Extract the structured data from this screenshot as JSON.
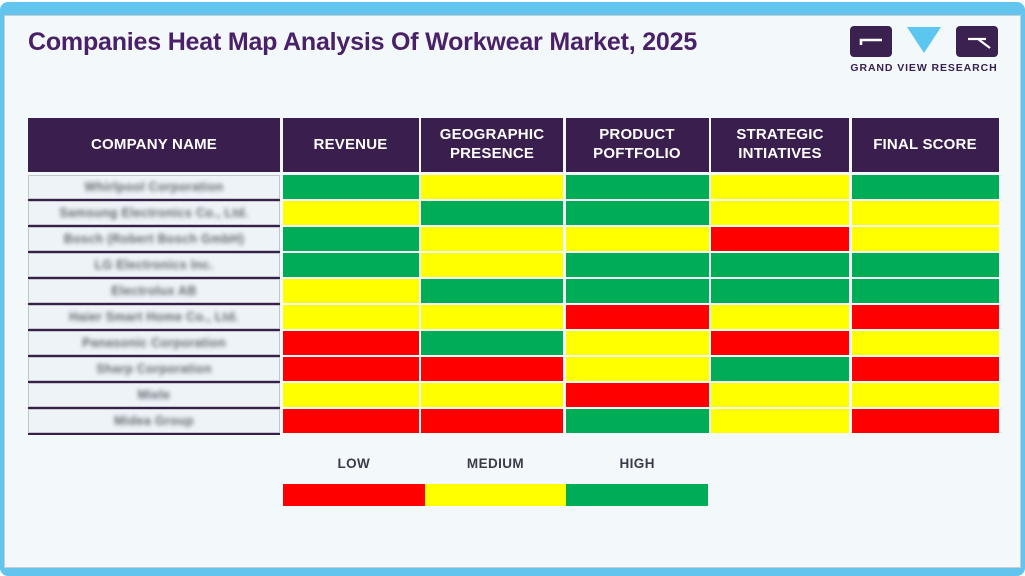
{
  "logo": {
    "brand": "GRAND VIEW RESEARCH"
  },
  "colors": {
    "low": "#FF0000",
    "medium": "#FFFF00",
    "high": "#00AC55",
    "header_bg": "#3A1E4E",
    "accent_blue": "#63C4EE",
    "title_text": "#4A2168",
    "separator_purple": "#3A1E4E"
  },
  "chart_data": {
    "type": "heatmap",
    "title": "Companies Heat Map Analysis Of Workwear Market, 2025",
    "columns": [
      "COMPANY NAME",
      "REVENUE",
      "GEOGRAPHIC PRESENCE",
      "PRODUCT POFTFOLIO",
      "STRATEGIC INTIATIVES",
      "FINAL SCORE"
    ],
    "value_scale": {
      "low": "LOW",
      "medium": "MEDIUM",
      "high": "HIGH"
    },
    "company_names_blurred_in_source": true,
    "rows": [
      {
        "company": "Whirlpool Corporation",
        "values": [
          "high",
          "medium",
          "high",
          "medium",
          "high"
        ]
      },
      {
        "company": "Samsung Electronics Co., Ltd.",
        "values": [
          "medium",
          "high",
          "high",
          "medium",
          "medium"
        ]
      },
      {
        "company": "Bosch (Robert Bosch GmbH)",
        "values": [
          "high",
          "medium",
          "medium",
          "low",
          "medium"
        ]
      },
      {
        "company": "LG Electronics Inc.",
        "values": [
          "high",
          "medium",
          "high",
          "high",
          "high"
        ]
      },
      {
        "company": "Electrolux AB",
        "values": [
          "medium",
          "high",
          "high",
          "high",
          "high"
        ]
      },
      {
        "company": "Haier Smart Home Co., Ltd.",
        "values": [
          "medium",
          "medium",
          "low",
          "medium",
          "low"
        ]
      },
      {
        "company": "Panasonic Corporation",
        "values": [
          "low",
          "high",
          "medium",
          "low",
          "medium"
        ]
      },
      {
        "company": "Sharp Corporation",
        "values": [
          "low",
          "low",
          "medium",
          "high",
          "low"
        ]
      },
      {
        "company": "Miele",
        "values": [
          "medium",
          "medium",
          "low",
          "medium",
          "medium"
        ]
      },
      {
        "company": "Midea Group",
        "values": [
          "low",
          "low",
          "high",
          "medium",
          "low"
        ]
      }
    ],
    "legend": [
      {
        "label": "LOW",
        "color": "#FF0000"
      },
      {
        "label": "MEDIUM",
        "color": "#FFFF00"
      },
      {
        "label": "HIGH",
        "color": "#00AC55"
      }
    ],
    "legend_position": "bottom"
  }
}
